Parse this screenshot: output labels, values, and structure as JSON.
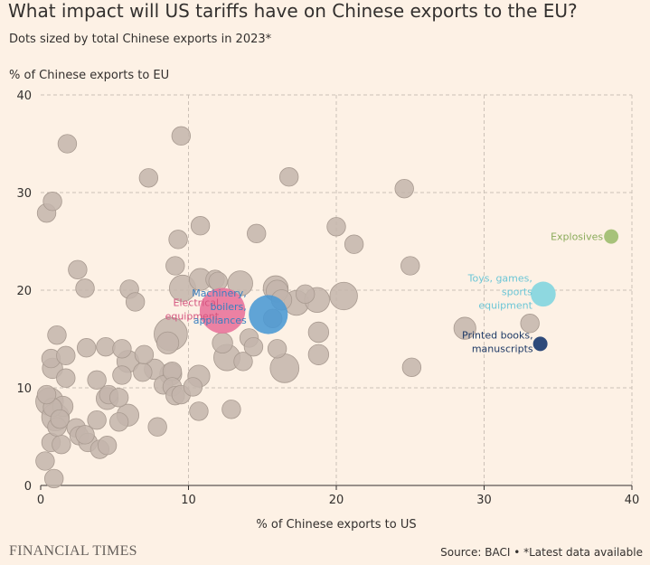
{
  "header": {
    "title": "What impact will US tariffs have on Chinese exports to the EU?",
    "subtitle": "Dots sized by total Chinese exports in 2023*"
  },
  "footer": {
    "logo": "FINANCIAL TIMES",
    "source": "Source: BACI • *Latest data available"
  },
  "colors": {
    "background": "#fdf1e5",
    "grey_dot": "#c3b5ab",
    "grey_dot_stroke": "#a89a90",
    "electrical": "#e8719a",
    "machinery": "#4a98d4",
    "toys": "#8ed8e0",
    "printed": "#2e4a7a",
    "explosives": "#a7c27a",
    "grid": "#ccc1b7",
    "axis": "#33302e"
  },
  "chart_data": {
    "type": "scatter",
    "title": "What impact will US tariffs have on Chinese exports to the EU?",
    "subtitle": "Dots sized by total Chinese exports in 2023*",
    "xlabel": "% of Chinese exports to US",
    "ylabel": "% of Chinese exports to EU",
    "xlim": [
      0,
      40
    ],
    "ylim": [
      0,
      40
    ],
    "x_ticks": [
      0,
      10,
      20,
      30,
      40
    ],
    "y_ticks": [
      0,
      10,
      20,
      30,
      40
    ],
    "grid": true,
    "size_note": "relative total Chinese exports (1 = smallest)",
    "highlighted": [
      {
        "name": "Electrical equipment",
        "label_lines": [
          "Electrical",
          "equipment"
        ],
        "x": 12.3,
        "y": 17.9,
        "size": 30,
        "color": "#e8719a",
        "label_color": "#d4557f",
        "label_side": "left"
      },
      {
        "name": "Machinery, boilers, appliances",
        "label_lines": [
          "Machinery,",
          "boilers,",
          "appliances"
        ],
        "x": 15.4,
        "y": 17.5,
        "size": 22,
        "color": "#4a98d4",
        "label_color": "#3a7fbf",
        "label_side": "left"
      },
      {
        "name": "Toys, games, sports equipment",
        "label_lines": [
          "Toys, games,",
          "sports",
          "equipment"
        ],
        "x": 34.0,
        "y": 19.6,
        "size": 9,
        "color": "#8ed8e0",
        "label_color": "#6cc6d6",
        "label_side": "left"
      },
      {
        "name": "Printed books, manuscripts",
        "label_lines": [
          "Printed books,",
          "manuscripts"
        ],
        "x": 33.8,
        "y": 14.5,
        "size": 3,
        "color": "#2e4a7a",
        "label_color": "#1f3a66",
        "label_side": "left"
      },
      {
        "name": "Explosives",
        "label_lines": [
          "Explosives"
        ],
        "x": 38.6,
        "y": 25.5,
        "size": 3,
        "color": "#a7c27a",
        "label_color": "#8aab5a",
        "label_side": "left"
      }
    ],
    "points": [
      {
        "x": 0.3,
        "y": 2.5,
        "s": 5
      },
      {
        "x": 0.9,
        "y": 0.7,
        "s": 5
      },
      {
        "x": 0.7,
        "y": 4.4,
        "s": 5
      },
      {
        "x": 1.4,
        "y": 4.2,
        "s": 5
      },
      {
        "x": 1.1,
        "y": 6.0,
        "s": 5
      },
      {
        "x": 0.8,
        "y": 8.0,
        "s": 5
      },
      {
        "x": 0.6,
        "y": 8.6,
        "s": 11
      },
      {
        "x": 0.4,
        "y": 9.3,
        "s": 5
      },
      {
        "x": 1.0,
        "y": 7.0,
        "s": 11
      },
      {
        "x": 1.3,
        "y": 6.8,
        "s": 5
      },
      {
        "x": 1.5,
        "y": 8.1,
        "s": 6
      },
      {
        "x": 0.8,
        "y": 12.0,
        "s": 6
      },
      {
        "x": 0.7,
        "y": 13.0,
        "s": 5
      },
      {
        "x": 1.7,
        "y": 11.0,
        "s": 5
      },
      {
        "x": 1.1,
        "y": 15.4,
        "s": 5
      },
      {
        "x": 1.7,
        "y": 13.3,
        "s": 5
      },
      {
        "x": 0.4,
        "y": 27.9,
        "s": 5
      },
      {
        "x": 0.8,
        "y": 29.1,
        "s": 5
      },
      {
        "x": 1.8,
        "y": 35.0,
        "s": 5
      },
      {
        "x": 2.4,
        "y": 5.9,
        "s": 5
      },
      {
        "x": 2.6,
        "y": 5.1,
        "s": 5
      },
      {
        "x": 3.2,
        "y": 4.4,
        "s": 5
      },
      {
        "x": 3.0,
        "y": 5.2,
        "s": 5
      },
      {
        "x": 3.1,
        "y": 14.1,
        "s": 5
      },
      {
        "x": 3.0,
        "y": 20.2,
        "s": 5
      },
      {
        "x": 2.5,
        "y": 22.1,
        "s": 5
      },
      {
        "x": 3.8,
        "y": 6.7,
        "s": 5
      },
      {
        "x": 4.0,
        "y": 3.7,
        "s": 5
      },
      {
        "x": 4.5,
        "y": 4.1,
        "s": 5
      },
      {
        "x": 3.8,
        "y": 10.8,
        "s": 5
      },
      {
        "x": 4.5,
        "y": 8.9,
        "s": 7
      },
      {
        "x": 4.6,
        "y": 9.3,
        "s": 5
      },
      {
        "x": 4.4,
        "y": 14.2,
        "s": 5
      },
      {
        "x": 5.3,
        "y": 9.0,
        "s": 5
      },
      {
        "x": 5.3,
        "y": 6.5,
        "s": 5
      },
      {
        "x": 5.5,
        "y": 14.0,
        "s": 5
      },
      {
        "x": 5.5,
        "y": 11.3,
        "s": 5
      },
      {
        "x": 5.9,
        "y": 7.2,
        "s": 7
      },
      {
        "x": 5.9,
        "y": 12.7,
        "s": 7
      },
      {
        "x": 6.0,
        "y": 20.1,
        "s": 5
      },
      {
        "x": 6.4,
        "y": 18.8,
        "s": 5
      },
      {
        "x": 6.9,
        "y": 11.6,
        "s": 5
      },
      {
        "x": 7.0,
        "y": 13.4,
        "s": 5
      },
      {
        "x": 7.3,
        "y": 31.5,
        "s": 5
      },
      {
        "x": 7.7,
        "y": 11.9,
        "s": 6
      },
      {
        "x": 7.9,
        "y": 6.0,
        "s": 5
      },
      {
        "x": 8.3,
        "y": 10.3,
        "s": 5
      },
      {
        "x": 8.6,
        "y": 14.6,
        "s": 7
      },
      {
        "x": 8.8,
        "y": 15.5,
        "s": 16
      },
      {
        "x": 8.8,
        "y": 11.4,
        "s": 7
      },
      {
        "x": 8.9,
        "y": 11.7,
        "s": 5
      },
      {
        "x": 8.9,
        "y": 10.1,
        "s": 5
      },
      {
        "x": 9.1,
        "y": 9.2,
        "s": 5
      },
      {
        "x": 9.1,
        "y": 22.5,
        "s": 5
      },
      {
        "x": 9.3,
        "y": 25.2,
        "s": 5
      },
      {
        "x": 9.5,
        "y": 35.8,
        "s": 5
      },
      {
        "x": 9.5,
        "y": 9.3,
        "s": 5
      },
      {
        "x": 9.6,
        "y": 20.2,
        "s": 10
      },
      {
        "x": 10.3,
        "y": 10.1,
        "s": 5
      },
      {
        "x": 10.7,
        "y": 11.2,
        "s": 7
      },
      {
        "x": 10.8,
        "y": 21.1,
        "s": 7
      },
      {
        "x": 10.8,
        "y": 26.6,
        "s": 5
      },
      {
        "x": 10.7,
        "y": 7.6,
        "s": 5
      },
      {
        "x": 11.8,
        "y": 21.1,
        "s": 5
      },
      {
        "x": 12.0,
        "y": 20.9,
        "s": 5
      },
      {
        "x": 12.3,
        "y": 14.6,
        "s": 6
      },
      {
        "x": 12.6,
        "y": 13.1,
        "s": 10
      },
      {
        "x": 12.9,
        "y": 7.8,
        "s": 5
      },
      {
        "x": 13.5,
        "y": 20.7,
        "s": 9
      },
      {
        "x": 13.7,
        "y": 12.7,
        "s": 5
      },
      {
        "x": 14.1,
        "y": 15.1,
        "s": 5
      },
      {
        "x": 14.4,
        "y": 14.2,
        "s": 5
      },
      {
        "x": 14.6,
        "y": 25.8,
        "s": 5
      },
      {
        "x": 15.7,
        "y": 17.1,
        "s": 5
      },
      {
        "x": 15.9,
        "y": 20.2,
        "s": 9
      },
      {
        "x": 16.0,
        "y": 19.9,
        "s": 7
      },
      {
        "x": 16.0,
        "y": 14.0,
        "s": 5
      },
      {
        "x": 16.3,
        "y": 19.0,
        "s": 6
      },
      {
        "x": 16.5,
        "y": 12.0,
        "s": 12
      },
      {
        "x": 16.8,
        "y": 31.6,
        "s": 5
      },
      {
        "x": 17.3,
        "y": 18.7,
        "s": 9
      },
      {
        "x": 17.9,
        "y": 19.6,
        "s": 5
      },
      {
        "x": 18.7,
        "y": 19.0,
        "s": 9
      },
      {
        "x": 18.8,
        "y": 15.7,
        "s": 6
      },
      {
        "x": 18.8,
        "y": 13.4,
        "s": 6
      },
      {
        "x": 20.0,
        "y": 26.5,
        "s": 5
      },
      {
        "x": 20.5,
        "y": 19.4,
        "s": 11
      },
      {
        "x": 21.2,
        "y": 24.7,
        "s": 5
      },
      {
        "x": 24.6,
        "y": 30.4,
        "s": 5
      },
      {
        "x": 25.0,
        "y": 22.5,
        "s": 5
      },
      {
        "x": 25.1,
        "y": 12.1,
        "s": 5
      },
      {
        "x": 28.7,
        "y": 16.1,
        "s": 7
      },
      {
        "x": 33.1,
        "y": 16.6,
        "s": 5
      }
    ]
  }
}
